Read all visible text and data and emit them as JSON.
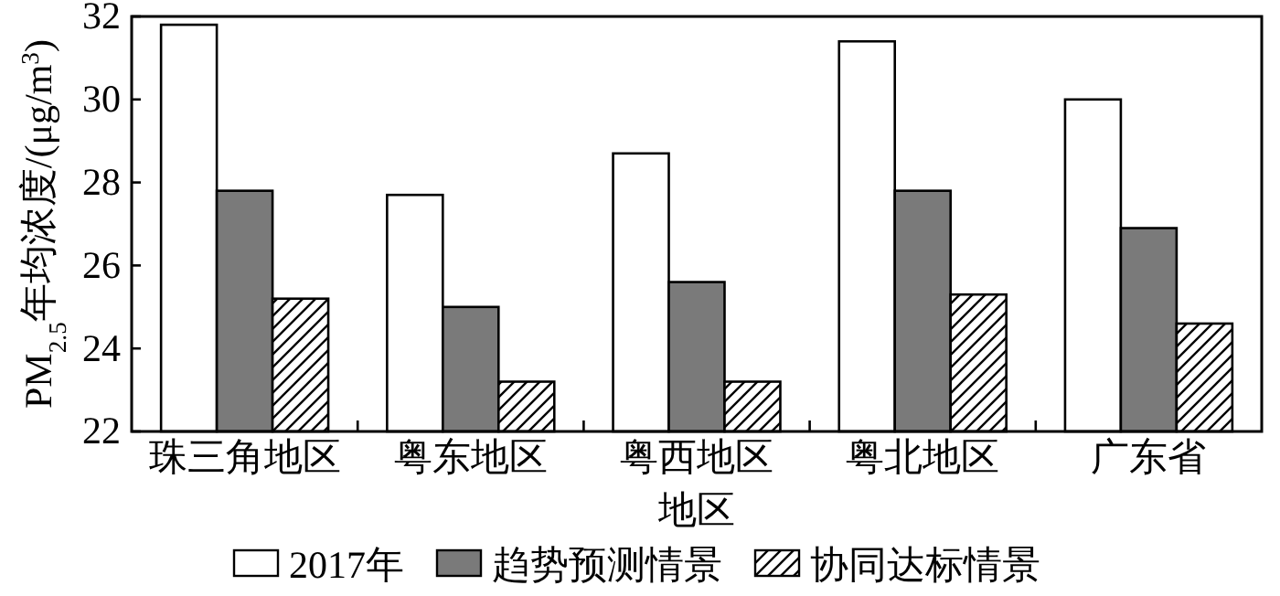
{
  "chart_data": {
    "type": "bar",
    "xlabel": "地区",
    "ylabel": "PM$_{2.5}$年均浓度/(μg/m$^{3}$)",
    "categories": [
      "珠三角地区",
      "粤东地区",
      "粤西地区",
      "粤北地区",
      "广东省"
    ],
    "series": [
      {
        "name": "2017年",
        "color": "#ffffff",
        "values": [
          31.8,
          27.7,
          28.7,
          31.4,
          30.0
        ]
      },
      {
        "name": "趋势预测情景",
        "color": "#7a7a7a",
        "values": [
          27.8,
          25.0,
          25.6,
          27.8,
          26.9
        ]
      },
      {
        "name": "协同达标情景",
        "color": "#000000",
        "values": [
          25.2,
          23.2,
          23.2,
          25.3,
          24.6
        ]
      }
    ],
    "ylim": [
      22,
      32
    ],
    "yticks": [
      22,
      24,
      26,
      28,
      30,
      32
    ],
    "grid": false,
    "legend": "bottom"
  }
}
